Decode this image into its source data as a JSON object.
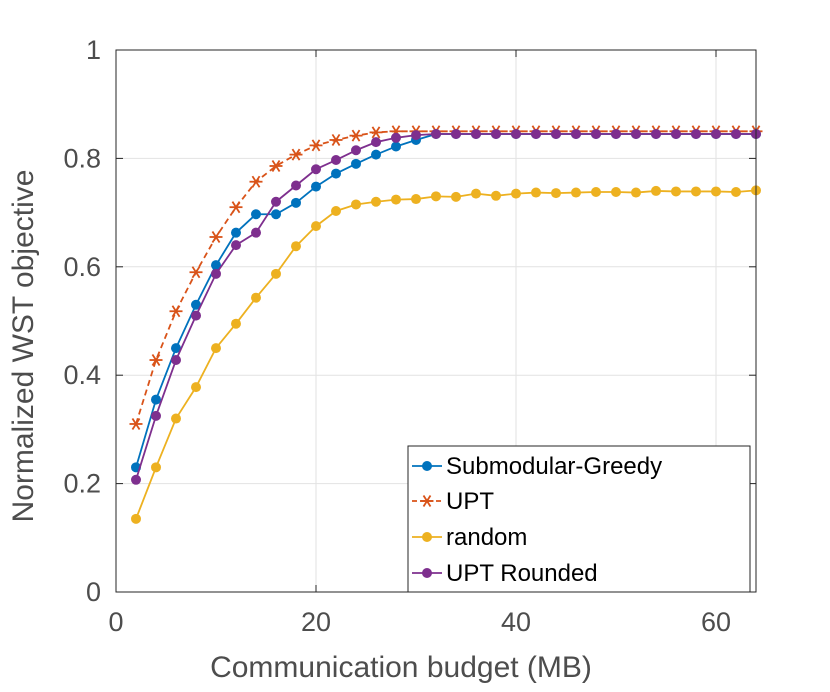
{
  "chart_data": {
    "type": "line",
    "xlabel": "Communication budget (MB)",
    "ylabel": "Normalized WST objective",
    "xlim": [
      0,
      64
    ],
    "ylim": [
      0,
      1
    ],
    "xticks": [
      0,
      20,
      40,
      60
    ],
    "yticks": [
      0,
      0.2,
      0.4,
      0.6,
      0.8,
      1
    ],
    "xtick_labels": [
      "0",
      "20",
      "40",
      "60"
    ],
    "ytick_labels": [
      "0",
      "0.2",
      "0.4",
      "0.6",
      "0.8",
      "1"
    ],
    "grid": true,
    "legend_position": "bottom-right",
    "x": [
      2,
      4,
      6,
      8,
      10,
      12,
      14,
      16,
      18,
      20,
      22,
      24,
      26,
      28,
      30,
      32,
      34,
      36,
      38,
      40,
      42,
      44,
      46,
      48,
      50,
      52,
      54,
      56,
      58,
      60,
      62,
      64
    ],
    "series": [
      {
        "name": "Submodular-Greedy",
        "color": "#0072bd",
        "line_style": "solid",
        "marker": "circle",
        "values": [
          0.23,
          0.355,
          0.45,
          0.53,
          0.603,
          0.663,
          0.697,
          0.697,
          0.718,
          0.748,
          0.772,
          0.79,
          0.807,
          0.822,
          0.834,
          0.845,
          0.845,
          0.845,
          0.845,
          0.845,
          0.845,
          0.845,
          0.845,
          0.845,
          0.845,
          0.845,
          0.845,
          0.845,
          0.845,
          0.845,
          0.845,
          0.845
        ]
      },
      {
        "name": "UPT",
        "color": "#d95319",
        "line_style": "dashed",
        "marker": "asterisk",
        "values": [
          0.31,
          0.428,
          0.518,
          0.59,
          0.655,
          0.71,
          0.757,
          0.786,
          0.807,
          0.824,
          0.834,
          0.842,
          0.848,
          0.85,
          0.85,
          0.85,
          0.85,
          0.85,
          0.85,
          0.85,
          0.85,
          0.85,
          0.85,
          0.85,
          0.85,
          0.85,
          0.85,
          0.85,
          0.85,
          0.85,
          0.85,
          0.85
        ]
      },
      {
        "name": "random",
        "color": "#edb120",
        "line_style": "solid",
        "marker": "circle",
        "values": [
          0.135,
          0.23,
          0.32,
          0.378,
          0.45,
          0.495,
          0.543,
          0.587,
          0.638,
          0.675,
          0.703,
          0.715,
          0.72,
          0.724,
          0.725,
          0.73,
          0.729,
          0.735,
          0.731,
          0.735,
          0.737,
          0.736,
          0.737,
          0.738,
          0.738,
          0.737,
          0.74,
          0.739,
          0.739,
          0.739,
          0.738,
          0.741
        ]
      },
      {
        "name": "UPT Rounded",
        "color": "#7e2f8e",
        "line_style": "solid",
        "marker": "circle",
        "values": [
          0.207,
          0.325,
          0.428,
          0.51,
          0.587,
          0.64,
          0.663,
          0.72,
          0.75,
          0.78,
          0.797,
          0.815,
          0.83,
          0.838,
          0.843,
          0.845,
          0.845,
          0.845,
          0.845,
          0.845,
          0.845,
          0.845,
          0.845,
          0.845,
          0.845,
          0.845,
          0.845,
          0.845,
          0.845,
          0.845,
          0.845,
          0.845
        ]
      }
    ]
  }
}
